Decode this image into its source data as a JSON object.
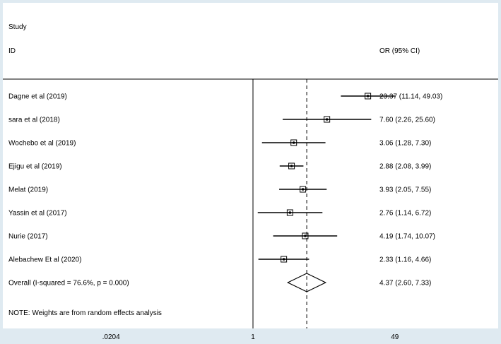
{
  "chart_data": {
    "type": "forest",
    "header": {
      "study": "Study",
      "id": "ID",
      "effect": "OR (95% CI)"
    },
    "studies": [
      {
        "label": "Dagne et al  (2019)",
        "or": 23.37,
        "lower": 11.14,
        "upper": 49.03,
        "ci_text": "23.37 (11.14, 49.03)"
      },
      {
        "label": "sara et al  (2018)",
        "or": 7.6,
        "lower": 2.26,
        "upper": 25.6,
        "ci_text": "7.60 (2.26, 25.60)"
      },
      {
        "label": "Wochebo et al (2019)",
        "or": 3.06,
        "lower": 1.28,
        "upper": 7.3,
        "ci_text": "3.06 (1.28, 7.30)"
      },
      {
        "label": "Ejigu et al (2019)",
        "or": 2.88,
        "lower": 2.08,
        "upper": 3.99,
        "ci_text": "2.88 (2.08, 3.99)"
      },
      {
        "label": "Melat  (2019)",
        "or": 3.93,
        "lower": 2.05,
        "upper": 7.55,
        "ci_text": "3.93 (2.05, 7.55)"
      },
      {
        "label": "Yassin et al (2017)",
        "or": 2.76,
        "lower": 1.14,
        "upper": 6.72,
        "ci_text": "2.76 (1.14, 6.72)"
      },
      {
        "label": "Nurie  (2017)",
        "or": 4.19,
        "lower": 1.74,
        "upper": 10.07,
        "ci_text": "4.19 (1.74, 10.07)"
      },
      {
        "label": "Alebachew Et al (2020)",
        "or": 2.33,
        "lower": 1.16,
        "upper": 4.66,
        "ci_text": "2.33 (1.16, 4.66)"
      }
    ],
    "overall": {
      "label": "Overall  (I-squared = 76.6%, p = 0.000)",
      "or": 4.37,
      "lower": 2.6,
      "upper": 7.33,
      "ci_text": "4.37 (2.60, 7.33)"
    },
    "note": "NOTE: Weights are from random effects analysis",
    "x_scale": "log",
    "x_ticks": [
      {
        "value": 0.0204,
        "label": ".0204"
      },
      {
        "value": 1,
        "label": "1"
      },
      {
        "value": 49,
        "label": "49"
      }
    ],
    "xlim": [
      0.0204,
      49
    ],
    "null_line": 1,
    "colors": {
      "background": "#dfeaf1",
      "plot": "#ffffff",
      "line": "#000000"
    }
  }
}
